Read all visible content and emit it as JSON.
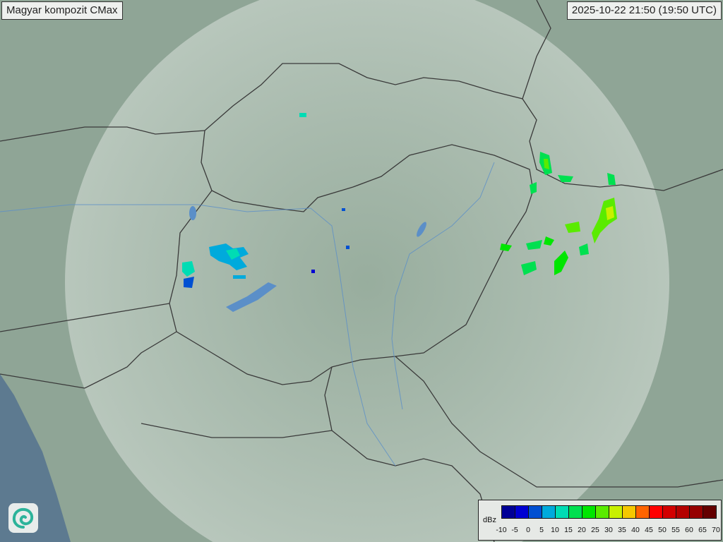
{
  "header": {
    "title": "Magyar kompozit  CMax",
    "timestamp": "2025-10-22 21:50 (19:50 UTC)"
  },
  "logo": {
    "icon": "swirl-logo-icon"
  },
  "legend": {
    "unit": "dBz",
    "ticks": [
      "-10",
      "-5",
      "0",
      "5",
      "10",
      "15",
      "20",
      "25",
      "30",
      "35",
      "40",
      "45",
      "50",
      "55",
      "60",
      "65",
      "70"
    ],
    "colors": [
      "#000096",
      "#0000d2",
      "#0050d2",
      "#00aadc",
      "#00dcb4",
      "#00e050",
      "#00e600",
      "#5aeb00",
      "#c8f000",
      "#f5c800",
      "#ff6400",
      "#ff0000",
      "#d20000",
      "#b40000",
      "#960000",
      "#640000"
    ]
  },
  "colors": {
    "land": "#8fa596",
    "radar_coverage": "#c9d6cc",
    "sea": "#5d7a90",
    "border": "#3a3a3a",
    "river": "#5b8fc8"
  }
}
